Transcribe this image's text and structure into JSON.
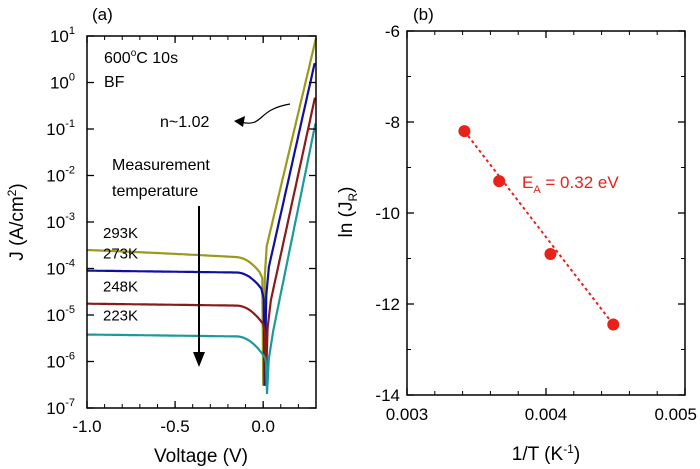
{
  "chart_data": [
    {
      "panel_label": "(a)",
      "type": "line",
      "xlabel": "Voltage (V)",
      "ylabel_main": "J (A/cm",
      "ylabel_sup": "2",
      "ylabel_close": ")",
      "xlim": [
        -1.0,
        0.3
      ],
      "ylim": [
        1e-07,
        10
      ],
      "y_scale": "log",
      "grid": false,
      "x_ticks": [
        -1.0,
        -0.5,
        0.0
      ],
      "x_tick_labels": [
        "-1.0",
        "-0.5",
        "0.0"
      ],
      "y_ticks": [
        1e-07,
        1e-06,
        1e-05,
        0.0001,
        0.001,
        0.01,
        0.1,
        1,
        10
      ],
      "y_tick_exponents": [
        "-7",
        "-6",
        "-5",
        "-4",
        "-3",
        "-2",
        "-1",
        "0",
        "1"
      ],
      "y_tick_base": "10",
      "annotations": {
        "condition_line1_a": "600",
        "condition_line1_sup": "o",
        "condition_line1_b": "C 10s",
        "condition_line2": "BF",
        "ideality": "n~1.02",
        "measurement_line1": "Measurement",
        "measurement_line2": "temperature"
      },
      "series": [
        {
          "label": "293K",
          "color": "#9a9a1a",
          "reverse_current": 0.00025,
          "v_min": 0.0,
          "forward_shift": 0.0,
          "x": [
            -1.0,
            -0.8,
            -0.6,
            -0.4,
            -0.2,
            -0.05,
            0.0,
            0.3
          ],
          "y": [
            0.00025,
            0.00021,
            0.00019,
            0.000175,
            0.00016,
            0.00014,
            3e-07,
            9
          ]
        },
        {
          "label": "273K",
          "color": "#1010a0",
          "reverse_current": 9e-05,
          "v_min": 0.008,
          "forward_shift": 0.015,
          "x": [
            -1.0,
            -0.8,
            -0.6,
            -0.4,
            -0.2,
            -0.05,
            0.008,
            0.3
          ],
          "y": [
            9e-05,
            8.7e-05,
            8.5e-05,
            8.2e-05,
            7.9e-05,
            7.4e-05,
            3e-07,
            3.5
          ]
        },
        {
          "label": "248K",
          "color": "#8b1a1a",
          "reverse_current": 1.75e-05,
          "v_min": 0.015,
          "forward_shift": 0.03,
          "x": [
            -1.0,
            -0.8,
            -0.6,
            -0.4,
            -0.2,
            -0.05,
            0.015,
            0.3
          ],
          "y": [
            1.75e-05,
            1.72e-05,
            1.7e-05,
            1.67e-05,
            1.6e-05,
            1.5e-05,
            3e-07,
            0.6
          ]
        },
        {
          "label": "223K",
          "color": "#1a9a9a",
          "reverse_current": 3.8e-06,
          "v_min": 0.022,
          "forward_shift": 0.05,
          "x": [
            -1.0,
            -0.8,
            -0.6,
            -0.4,
            -0.2,
            -0.05,
            0.022,
            0.3
          ],
          "y": [
            3.8e-06,
            3.7e-06,
            3.5e-06,
            3.3e-06,
            3.1e-06,
            2.9e-06,
            2e-07,
            0.15
          ]
        }
      ]
    },
    {
      "panel_label": "(b)",
      "type": "scatter",
      "xlabel_main": "1/T (K",
      "xlabel_sup": "-1",
      "xlabel_close": ")",
      "ylabel_main": "ln (J",
      "ylabel_sub": "R",
      "ylabel_close": ")",
      "xlim": [
        0.003,
        0.005
      ],
      "ylim": [
        -14,
        -6
      ],
      "grid": false,
      "x_ticks": [
        0.003,
        0.004,
        0.005
      ],
      "x_tick_labels": [
        "0.003",
        "0.004",
        "0.005"
      ],
      "y_ticks": [
        -14,
        -12,
        -10,
        -8,
        -6
      ],
      "y_tick_labels": [
        "-14",
        "-12",
        "-10",
        "-8",
        "-6"
      ],
      "color": "#e8221a",
      "x": [
        0.003413,
        0.003663,
        0.004032,
        0.004484
      ],
      "y": [
        -8.2,
        -9.3,
        -10.9,
        -12.45
      ],
      "fit_line": {
        "x": [
          0.003413,
          0.004484
        ],
        "y": [
          -8.2,
          -12.45
        ]
      },
      "annotation": {
        "main": "E",
        "sub": "A",
        "rest": " = 0.32 eV"
      }
    }
  ]
}
